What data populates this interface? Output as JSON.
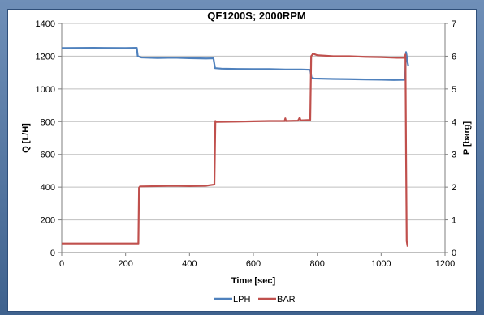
{
  "chart_data": {
    "type": "line",
    "title": "QF1200S; 2000RPM",
    "xlabel": "Time [sec]",
    "ylabel_left": "Q [L/H]",
    "ylabel_right": "P [barg]",
    "xlim": [
      0,
      1200
    ],
    "xticks": [
      0,
      200,
      400,
      600,
      800,
      1000,
      1200
    ],
    "ylim_left": [
      0,
      1400
    ],
    "yticks_left": [
      0,
      200,
      400,
      600,
      800,
      1000,
      1200,
      1400
    ],
    "ylim_right": [
      0,
      7
    ],
    "yticks_right": [
      0,
      1,
      2,
      3,
      4,
      5,
      6,
      7
    ],
    "grid": "horizontal",
    "legend_position": "bottom",
    "series": [
      {
        "name": "LPH",
        "axis": "left",
        "color": "#4f81bd",
        "x": [
          0,
          100,
          200,
          235,
          238,
          250,
          300,
          350,
          400,
          450,
          475,
          480,
          500,
          550,
          600,
          650,
          700,
          750,
          778,
          782,
          790,
          850,
          900,
          950,
          1000,
          1040,
          1075,
          1078,
          1081,
          1083,
          1085
        ],
        "y": [
          1250,
          1251,
          1250,
          1251,
          1200,
          1192,
          1189,
          1191,
          1188,
          1186,
          1187,
          1127,
          1124,
          1122,
          1121,
          1121,
          1119,
          1119,
          1117,
          1068,
          1064,
          1061,
          1060,
          1058,
          1057,
          1055,
          1056,
          1225,
          1190,
          1160,
          1140
        ]
      },
      {
        "name": "BAR",
        "axis": "right",
        "color": "#c0504d",
        "x": [
          0,
          100,
          200,
          240,
          242,
          245,
          300,
          350,
          400,
          450,
          478,
          481,
          485,
          550,
          600,
          650,
          698,
          700,
          702,
          740,
          745,
          748,
          778,
          781,
          785,
          786,
          800,
          850,
          900,
          950,
          1000,
          1050,
          1075,
          1076,
          1078,
          1080,
          1083
        ],
        "y": [
          0.28,
          0.28,
          0.28,
          0.28,
          1.98,
          2.02,
          2.03,
          2.04,
          2.03,
          2.04,
          2.08,
          4.02,
          3.99,
          4.0,
          4.01,
          4.02,
          4.02,
          4.1,
          4.02,
          4.03,
          4.12,
          4.04,
          4.05,
          6.0,
          6.05,
          6.08,
          6.03,
          6.0,
          6.0,
          5.98,
          5.97,
          5.95,
          5.95,
          6.05,
          3.0,
          0.35,
          0.18
        ]
      }
    ]
  }
}
